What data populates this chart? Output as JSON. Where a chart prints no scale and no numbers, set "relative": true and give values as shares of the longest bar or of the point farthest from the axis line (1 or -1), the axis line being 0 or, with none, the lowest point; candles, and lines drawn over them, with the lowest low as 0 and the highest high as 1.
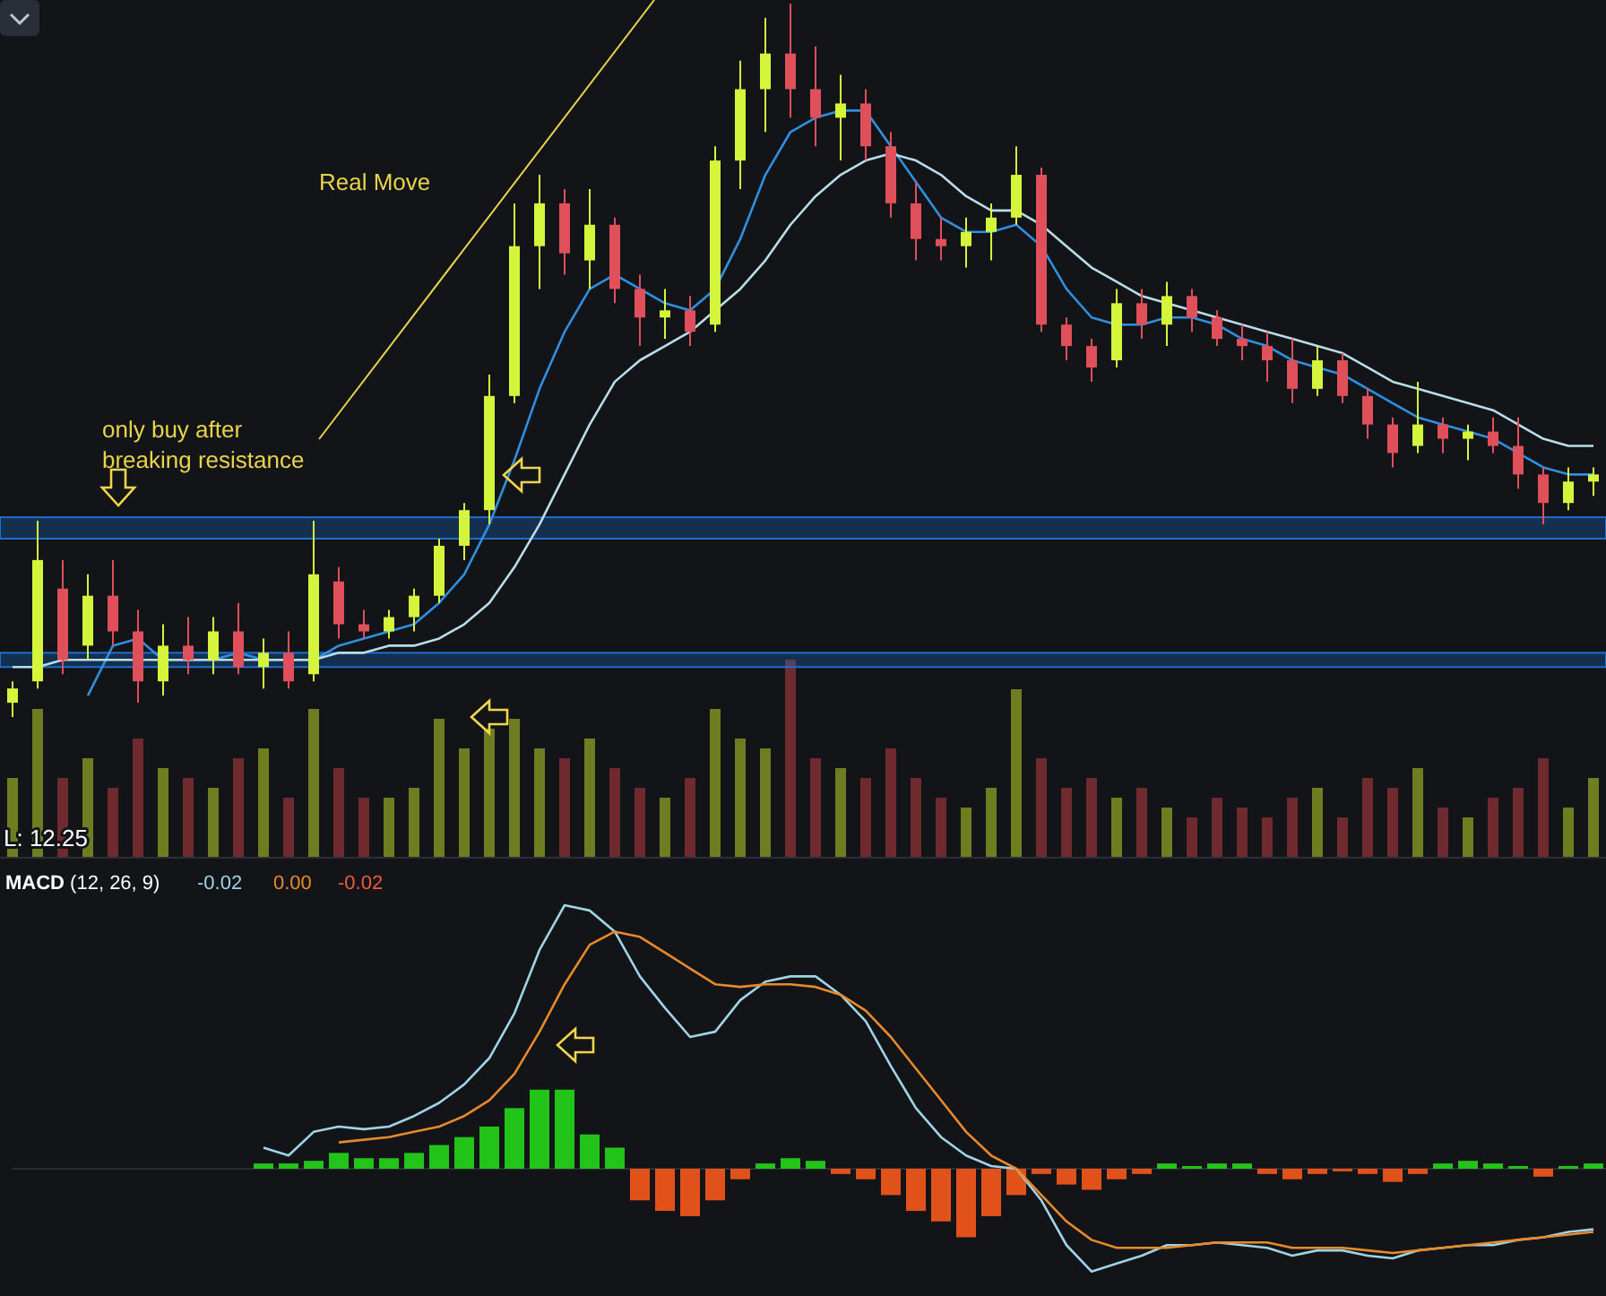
{
  "chart_data": [
    {
      "type": "candlestick",
      "relative": true,
      "categories": [
        null,
        null,
        null,
        null,
        null,
        null,
        null,
        null,
        null,
        null,
        null,
        null,
        null,
        null,
        null,
        null,
        null,
        null,
        null,
        null,
        null,
        null,
        null,
        null,
        null,
        null,
        null,
        null,
        null,
        null,
        null,
        null,
        null,
        null,
        null,
        null,
        null,
        null,
        null,
        null,
        null,
        null,
        null,
        null,
        null,
        null,
        null,
        null,
        null,
        null,
        null,
        null,
        null,
        null,
        null,
        null,
        null,
        null,
        null,
        null,
        null,
        null,
        null,
        null
      ],
      "ohlc": [
        [
          0.02,
          0.05,
          0,
          0.04
        ],
        [
          0.05,
          0.275,
          0.04,
          0.22
        ],
        [
          0.18,
          0.22,
          0.06,
          0.08
        ],
        [
          0.1,
          0.2,
          0.08,
          0.17
        ],
        [
          0.17,
          0.22,
          0.1,
          0.12
        ],
        [
          0.12,
          0.15,
          0.02,
          0.05
        ],
        [
          0.05,
          0.13,
          0.03,
          0.1
        ],
        [
          0.1,
          0.14,
          0.06,
          0.08
        ],
        [
          0.08,
          0.14,
          0.06,
          0.12
        ],
        [
          0.12,
          0.16,
          0.06,
          0.07
        ],
        [
          0.07,
          0.11,
          0.04,
          0.09
        ],
        [
          0.09,
          0.12,
          0.04,
          0.05
        ],
        [
          0.06,
          0.275,
          0.05,
          0.2
        ],
        [
          0.19,
          0.21,
          0.11,
          0.13
        ],
        [
          0.13,
          0.15,
          0.11,
          0.12
        ],
        [
          0.12,
          0.15,
          0.11,
          0.14
        ],
        [
          0.14,
          0.18,
          0.12,
          0.17
        ],
        [
          0.17,
          0.25,
          0.16,
          0.24
        ],
        [
          0.24,
          0.3,
          0.22,
          0.29
        ],
        [
          0.29,
          0.48,
          0.27,
          0.45
        ],
        [
          0.45,
          0.72,
          0.44,
          0.66
        ],
        [
          0.66,
          0.76,
          0.6,
          0.72
        ],
        [
          0.72,
          0.74,
          0.62,
          0.65
        ],
        [
          0.64,
          0.74,
          0.6,
          0.69
        ],
        [
          0.69,
          0.7,
          0.58,
          0.6
        ],
        [
          0.6,
          0.62,
          0.52,
          0.56
        ],
        [
          0.56,
          0.6,
          0.53,
          0.57
        ],
        [
          0.57,
          0.59,
          0.52,
          0.54
        ],
        [
          0.55,
          0.8,
          0.54,
          0.78
        ],
        [
          0.78,
          0.92,
          0.74,
          0.88
        ],
        [
          0.88,
          0.98,
          0.82,
          0.93
        ],
        [
          0.93,
          1,
          0.84,
          0.88
        ],
        [
          0.88,
          0.94,
          0.8,
          0.84
        ],
        [
          0.84,
          0.9,
          0.78,
          0.86
        ],
        [
          0.86,
          0.88,
          0.78,
          0.8
        ],
        [
          0.8,
          0.82,
          0.7,
          0.72
        ],
        [
          0.72,
          0.75,
          0.64,
          0.67
        ],
        [
          0.67,
          0.7,
          0.64,
          0.66
        ],
        [
          0.66,
          0.7,
          0.63,
          0.68
        ],
        [
          0.68,
          0.72,
          0.64,
          0.7
        ],
        [
          0.7,
          0.8,
          0.69,
          0.76
        ],
        [
          0.76,
          0.77,
          0.54,
          0.55
        ],
        [
          0.55,
          0.56,
          0.5,
          0.52
        ],
        [
          0.52,
          0.53,
          0.47,
          0.49
        ],
        [
          0.5,
          0.6,
          0.49,
          0.58
        ],
        [
          0.58,
          0.6,
          0.53,
          0.55
        ],
        [
          0.55,
          0.61,
          0.52,
          0.59
        ],
        [
          0.59,
          0.6,
          0.54,
          0.56
        ],
        [
          0.56,
          0.57,
          0.52,
          0.53
        ],
        [
          0.53,
          0.55,
          0.5,
          0.52
        ],
        [
          0.52,
          0.54,
          0.47,
          0.5
        ],
        [
          0.5,
          0.53,
          0.44,
          0.46
        ],
        [
          0.46,
          0.52,
          0.45,
          0.5
        ],
        [
          0.5,
          0.51,
          0.44,
          0.45
        ],
        [
          0.45,
          0.46,
          0.39,
          0.41
        ],
        [
          0.41,
          0.42,
          0.35,
          0.37
        ],
        [
          0.38,
          0.47,
          0.37,
          0.41
        ],
        [
          0.41,
          0.42,
          0.37,
          0.39
        ],
        [
          0.39,
          0.41,
          0.36,
          0.4
        ],
        [
          0.4,
          0.42,
          0.37,
          0.38
        ],
        [
          0.38,
          0.42,
          0.32,
          0.34
        ],
        [
          0.34,
          0.35,
          0.27,
          0.3
        ],
        [
          0.3,
          0.35,
          0.29,
          0.33
        ],
        [
          0.33,
          0.35,
          0.31,
          0.34
        ]
      ],
      "colors": [
        "#d4f53c",
        "#d4f53c",
        "#e0505a",
        "#d4f53c",
        "#e0505a",
        "#e0505a",
        "#d4f53c",
        "#e0505a",
        "#d4f53c",
        "#e0505a",
        "#d4f53c",
        "#e0505a",
        "#d4f53c",
        "#e0505a",
        "#e0505a",
        "#d4f53c",
        "#d4f53c",
        "#d4f53c",
        "#d4f53c",
        "#d4f53c",
        "#d4f53c",
        "#d4f53c",
        "#e0505a",
        "#d4f53c",
        "#e0505a",
        "#e0505a",
        "#d4f53c",
        "#e0505a",
        "#d4f53c",
        "#d4f53c",
        "#d4f53c",
        "#e0505a",
        "#e0505a",
        "#d4f53c",
        "#e0505a",
        "#e0505a",
        "#e0505a",
        "#e0505a",
        "#d4f53c",
        "#d4f53c",
        "#d4f53c",
        "#e0505a",
        "#e0505a",
        "#e0505a",
        "#d4f53c",
        "#e0505a",
        "#d4f53c",
        "#e0505a",
        "#e0505a",
        "#e0505a",
        "#e0505a",
        "#e0505a",
        "#d4f53c",
        "#e0505a",
        "#e0505a",
        "#e0505a",
        "#d4f53c",
        "#e0505a",
        "#d4f53c",
        "#e0505a",
        "#e0505a",
        "#e0505a",
        "#d4f53c",
        "#d4f53c"
      ],
      "series": [
        {
          "type": "line",
          "color": "#2f8fe0",
          "values": [
            null,
            null,
            null,
            0.03,
            0.1,
            0.11,
            0.08,
            0.08,
            0.08,
            0.09,
            0.08,
            0.08,
            0.08,
            0.1,
            0.11,
            0.12,
            0.13,
            0.16,
            0.2,
            0.27,
            0.36,
            0.46,
            0.54,
            0.6,
            0.62,
            0.6,
            0.58,
            0.57,
            0.6,
            0.67,
            0.76,
            0.82,
            0.84,
            0.85,
            0.85,
            0.8,
            0.75,
            0.7,
            0.68,
            0.68,
            0.69,
            0.66,
            0.6,
            0.56,
            0.55,
            0.55,
            0.56,
            0.56,
            0.55,
            0.53,
            0.52,
            0.5,
            0.49,
            0.48,
            0.46,
            0.44,
            0.42,
            0.41,
            0.4,
            0.39,
            0.37,
            0.35,
            0.34,
            0.34
          ]
        },
        {
          "type": "line",
          "color": "#b8dce8",
          "values": [
            0.07,
            0.07,
            0.08,
            0.08,
            0.08,
            0.08,
            0.08,
            0.08,
            0.08,
            0.08,
            0.08,
            0.08,
            0.08,
            0.09,
            0.09,
            0.1,
            0.1,
            0.11,
            0.13,
            0.16,
            0.21,
            0.27,
            0.34,
            0.41,
            0.47,
            0.5,
            0.52,
            0.54,
            0.57,
            0.6,
            0.64,
            0.69,
            0.73,
            0.76,
            0.78,
            0.79,
            0.78,
            0.76,
            0.73,
            0.71,
            0.71,
            0.69,
            0.66,
            0.63,
            0.61,
            0.59,
            0.58,
            0.57,
            0.56,
            0.55,
            0.54,
            0.53,
            0.52,
            0.51,
            0.49,
            0.47,
            0.46,
            0.45,
            0.44,
            0.43,
            0.41,
            0.39,
            0.38,
            0.38
          ]
        }
      ],
      "bands": [
        {
          "axis": "y",
          "from": 0.25,
          "to": 0.28,
          "color": "#1e6fd0"
        },
        {
          "axis": "y",
          "from": 0.07,
          "to": 0.09,
          "color": "#1e6fd0"
        }
      ],
      "annotations": [
        "Real Move",
        "only buy after breaking resistance",
        "L: 12.25"
      ]
    },
    {
      "type": "bar",
      "relative": true,
      "categories": [
        null,
        null,
        null,
        null,
        null,
        null,
        null,
        null,
        null,
        null,
        null,
        null,
        null,
        null,
        null,
        null,
        null,
        null,
        null,
        null,
        null,
        null,
        null,
        null,
        null,
        null,
        null,
        null,
        null,
        null,
        null,
        null,
        null,
        null,
        null,
        null,
        null,
        null,
        null,
        null,
        null,
        null,
        null,
        null,
        null,
        null,
        null,
        null,
        null,
        null,
        null,
        null,
        null,
        null,
        null,
        null,
        null,
        null,
        null,
        null,
        null,
        null,
        null,
        null
      ],
      "values": [
        0.4,
        0.75,
        0.4,
        0.5,
        0.35,
        0.6,
        0.45,
        0.4,
        0.35,
        0.5,
        0.55,
        0.3,
        0.75,
        0.45,
        0.3,
        0.3,
        0.35,
        0.7,
        0.55,
        0.65,
        0.7,
        0.55,
        0.5,
        0.6,
        0.45,
        0.35,
        0.3,
        0.4,
        0.75,
        0.6,
        0.55,
        1,
        0.5,
        0.45,
        0.4,
        0.55,
        0.4,
        0.3,
        0.25,
        0.35,
        0.85,
        0.5,
        0.35,
        0.4,
        0.3,
        0.35,
        0.25,
        0.2,
        0.3,
        0.25,
        0.2,
        0.3,
        0.35,
        0.2,
        0.4,
        0.35,
        0.45,
        0.25,
        0.2,
        0.3,
        0.35,
        0.5,
        0.25,
        0.4
      ],
      "colors": [
        "#6e7d20",
        "#6e7d20",
        "#6e2a2e",
        "#6e7d20",
        "#6e2a2e",
        "#6e2a2e",
        "#6e7d20",
        "#6e2a2e",
        "#6e7d20",
        "#6e2a2e",
        "#6e7d20",
        "#6e2a2e",
        "#6e7d20",
        "#6e2a2e",
        "#6e2a2e",
        "#6e7d20",
        "#6e7d20",
        "#6e7d20",
        "#6e7d20",
        "#6e7d20",
        "#6e7d20",
        "#6e7d20",
        "#6e2a2e",
        "#6e7d20",
        "#6e2a2e",
        "#6e2a2e",
        "#6e7d20",
        "#6e2a2e",
        "#6e7d20",
        "#6e7d20",
        "#6e7d20",
        "#6e2a2e",
        "#6e2a2e",
        "#6e7d20",
        "#6e2a2e",
        "#6e2a2e",
        "#6e2a2e",
        "#6e2a2e",
        "#6e7d20",
        "#6e7d20",
        "#6e7d20",
        "#6e2a2e",
        "#6e2a2e",
        "#6e2a2e",
        "#6e7d20",
        "#6e2a2e",
        "#6e7d20",
        "#6e2a2e",
        "#6e2a2e",
        "#6e2a2e",
        "#6e2a2e",
        "#6e2a2e",
        "#6e7d20",
        "#6e2a2e",
        "#6e2a2e",
        "#6e2a2e",
        "#6e7d20",
        "#6e2a2e",
        "#6e7d20",
        "#6e2a2e",
        "#6e2a2e",
        "#6e2a2e",
        "#6e7d20",
        "#6e7d20"
      ]
    },
    {
      "type": "line",
      "relative": true,
      "title": "MACD (12, 26, 9)",
      "categories": [
        null,
        null,
        null,
        null,
        null,
        null,
        null,
        null,
        null,
        null,
        null,
        null,
        null,
        null,
        null,
        null,
        null,
        null,
        null,
        null,
        null,
        null,
        null,
        null,
        null,
        null,
        null,
        null,
        null,
        null,
        null,
        null,
        null,
        null,
        null,
        null,
        null,
        null,
        null,
        null,
        null,
        null,
        null,
        null,
        null,
        null,
        null,
        null,
        null,
        null,
        null,
        null,
        null,
        null,
        null,
        null,
        null,
        null,
        null,
        null,
        null,
        null,
        null,
        null
      ],
      "series": [
        {
          "color": "#9fd3e6",
          "values": [
            null,
            null,
            null,
            null,
            null,
            null,
            null,
            null,
            null,
            null,
            0.08,
            0.05,
            0.14,
            0.16,
            0.15,
            0.16,
            0.2,
            0.25,
            0.32,
            0.42,
            0.59,
            0.83,
            1,
            0.98,
            0.9,
            0.73,
            0.61,
            0.5,
            0.52,
            0.64,
            0.71,
            0.73,
            0.73,
            0.66,
            0.56,
            0.39,
            0.23,
            0.12,
            0.05,
            0.01,
            0,
            -0.12,
            -0.29,
            -0.39,
            -0.36,
            -0.33,
            -0.29,
            -0.29,
            -0.28,
            -0.29,
            -0.3,
            -0.33,
            -0.31,
            -0.31,
            -0.33,
            -0.34,
            -0.31,
            -0.3,
            -0.29,
            -0.29,
            -0.27,
            -0.26,
            -0.24,
            -0.23
          ]
        },
        {
          "color": "#e88a2a",
          "values": [
            null,
            null,
            null,
            null,
            null,
            null,
            null,
            null,
            null,
            null,
            null,
            null,
            null,
            0.1,
            0.11,
            0.12,
            0.14,
            0.16,
            0.2,
            0.26,
            0.36,
            0.52,
            0.7,
            0.85,
            0.9,
            0.88,
            0.82,
            0.76,
            0.7,
            0.69,
            0.7,
            0.7,
            0.69,
            0.66,
            0.6,
            0.5,
            0.38,
            0.26,
            0.14,
            0.05,
            0,
            -0.1,
            -0.2,
            -0.27,
            -0.3,
            -0.3,
            -0.3,
            -0.29,
            -0.28,
            -0.28,
            -0.28,
            -0.3,
            -0.3,
            -0.3,
            -0.31,
            -0.32,
            -0.31,
            -0.3,
            -0.29,
            -0.28,
            -0.27,
            -0.26,
            -0.25,
            -0.24
          ]
        },
        {
          "type": "bar",
          "values": [
            null,
            null,
            null,
            null,
            null,
            null,
            null,
            null,
            null,
            null,
            0.02,
            0.02,
            0.03,
            0.06,
            0.04,
            0.04,
            0.06,
            0.09,
            0.12,
            0.16,
            0.23,
            0.3,
            0.3,
            0.13,
            0.08,
            -0.12,
            -0.16,
            -0.18,
            -0.12,
            -0.04,
            0.02,
            0.04,
            0.03,
            -0.02,
            -0.04,
            -0.1,
            -0.16,
            -0.2,
            -0.26,
            -0.18,
            -0.1,
            -0.02,
            -0.06,
            -0.08,
            -0.04,
            -0.02,
            0.02,
            0.01,
            0.02,
            0.02,
            -0.02,
            -0.04,
            -0.02,
            -0.01,
            -0.02,
            -0.05,
            -0.02,
            0.02,
            0.03,
            0.02,
            0.01,
            -0.03,
            0.01,
            0.02
          ],
          "colors": [
            null,
            null,
            null,
            null,
            null,
            null,
            null,
            null,
            null,
            null,
            "#22c41a",
            "#22c41a",
            "#22c41a",
            "#22c41a",
            "#22c41a",
            "#22c41a",
            "#22c41a",
            "#22c41a",
            "#22c41a",
            "#22c41a",
            "#22c41a",
            "#22c41a",
            "#22c41a",
            "#22c41a",
            "#22c41a",
            "#e0521a",
            "#e0521a",
            "#e0521a",
            "#e0521a",
            "#e0521a",
            "#22c41a",
            "#22c41a",
            "#22c41a",
            "#e0521a",
            "#e0521a",
            "#e0521a",
            "#e0521a",
            "#e0521a",
            "#e0521a",
            "#e0521a",
            "#e0521a",
            "#e0521a",
            "#e0521a",
            "#e0521a",
            "#e0521a",
            "#e0521a",
            "#22c41a",
            "#22c41a",
            "#22c41a",
            "#22c41a",
            "#e0521a",
            "#e0521a",
            "#e0521a",
            "#e0521a",
            "#e0521a",
            "#e0521a",
            "#e0521a",
            "#22c41a",
            "#22c41a",
            "#22c41a",
            "#22c41a",
            "#e0521a",
            "#22c41a",
            "#22c41a"
          ]
        }
      ],
      "annotations": [
        "-0.02",
        "0.00",
        "-0.02"
      ]
    }
  ]
}
